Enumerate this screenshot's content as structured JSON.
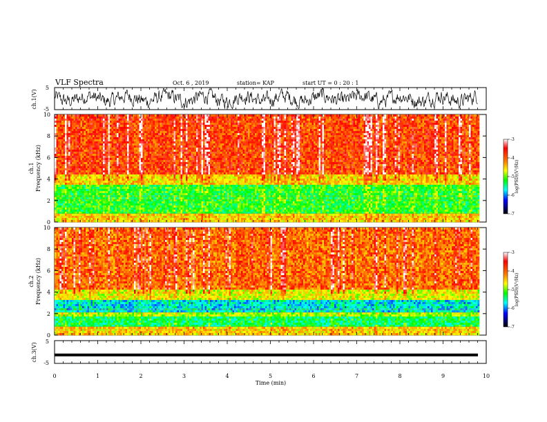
{
  "header": {
    "title": "VLF Spectra",
    "date": "Oct. 6 , 2019",
    "station": "station= KAP",
    "start_ut": "start UT =  0 : 20 : 1"
  },
  "colors": {
    "spectrogram_low": "#00007f",
    "spectrogram_high": "#ff0000",
    "trace": "#000000"
  },
  "chart_data": [
    {
      "type": "line",
      "panel": "ch1-waveform",
      "ylabel": "ch.1(V)",
      "ylim": [
        -5,
        5
      ],
      "yticks": [
        "5",
        "-5"
      ],
      "xlim": [
        0,
        10
      ],
      "description_series": "noisy voltage trace oscillating roughly between -4 and 4 V"
    },
    {
      "type": "heatmap",
      "panel": "ch1-spectrogram",
      "ylabel_line1": "ch.1",
      "ylabel_line2": "Frequency (kHz)",
      "ylim": [
        0,
        10
      ],
      "yticks": [
        "0",
        "2",
        "4",
        "6",
        "8",
        "10"
      ],
      "xlim": [
        0,
        9.8
      ],
      "colorbar": {
        "label": "log(PSD)(V²/Hz)",
        "range": [
          -7,
          -3
        ],
        "ticks": [
          "-3",
          "-4",
          "-5",
          "-6",
          "-7"
        ]
      },
      "bands": [
        {
          "f_range": [
            0,
            0.8
          ],
          "level": -4.6
        },
        {
          "f_range": [
            0.8,
            3.5
          ],
          "level": -5.4
        },
        {
          "f_range": [
            3.5,
            4.5
          ],
          "level": -4.6
        },
        {
          "f_range": [
            4.5,
            10
          ],
          "level": -3.9
        }
      ]
    },
    {
      "type": "heatmap",
      "panel": "ch2-spectrogram",
      "ylabel_line1": "ch.2",
      "ylabel_line2": "Frequency (kHz)",
      "ylim": [
        0,
        10
      ],
      "yticks": [
        "0",
        "2",
        "4",
        "6",
        "8",
        "10"
      ],
      "xlim": [
        0,
        9.8
      ],
      "colorbar": {
        "label": "log(PSD)(V²/Hz)",
        "range": [
          -7,
          -3
        ],
        "ticks": [
          "-3",
          "-4",
          "-5",
          "-6",
          "-7"
        ]
      },
      "bands": [
        {
          "f_range": [
            0,
            0.8
          ],
          "level": -4.6
        },
        {
          "f_range": [
            0.8,
            1.8
          ],
          "level": -5.6
        },
        {
          "f_range": [
            1.8,
            2.2
          ],
          "level": -5.0
        },
        {
          "f_range": [
            2.2,
            3.2
          ],
          "level": -6.0
        },
        {
          "f_range": [
            3.2,
            4.2
          ],
          "level": -4.8
        },
        {
          "f_range": [
            4.2,
            10
          ],
          "level": -4.1
        }
      ]
    },
    {
      "type": "line",
      "panel": "ch3-waveform",
      "ylabel": "ch.3(V)",
      "ylim": [
        -5,
        5
      ],
      "yticks": [
        "5",
        "-5"
      ],
      "xlim": [
        0,
        10
      ],
      "series": [
        {
          "values": [
            -1.3
          ]
        }
      ]
    }
  ],
  "xaxis": {
    "label": "Time (min)",
    "ticks": [
      "0",
      "1",
      "2",
      "3",
      "4",
      "5",
      "6",
      "7",
      "8",
      "9",
      "10"
    ]
  }
}
